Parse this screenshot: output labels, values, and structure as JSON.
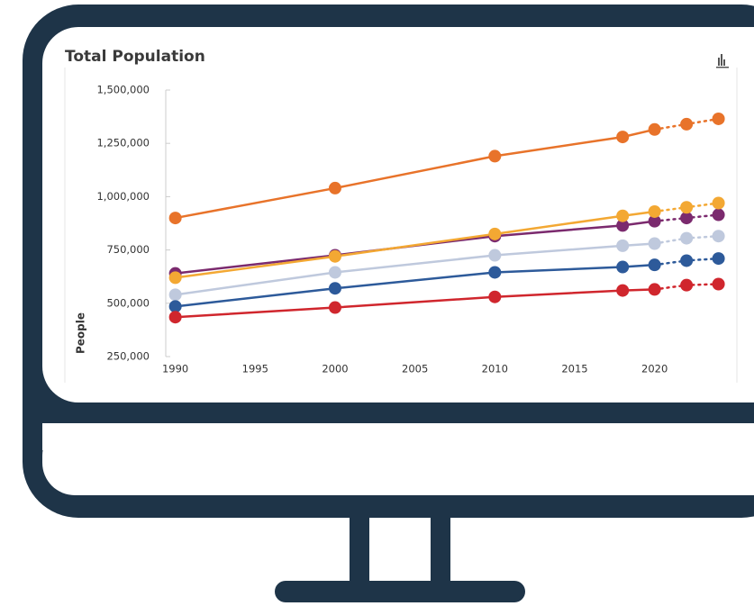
{
  "chart_data": {
    "type": "line",
    "title": "Total Population",
    "y_label": "People",
    "x": [
      1990,
      2000,
      2010,
      2018,
      2020,
      2022,
      2024
    ],
    "xlim": [
      1989.4,
      2024.7
    ],
    "xticks": [
      1990,
      1995,
      2000,
      2005,
      2010,
      2015,
      2020
    ],
    "ylim": [
      250000,
      1500000
    ],
    "yticks": [
      {
        "value": 250000,
        "label": "250,000"
      },
      {
        "value": 500000,
        "label": "500,000"
      },
      {
        "value": 750000,
        "label": "750,000"
      },
      {
        "value": 1000000,
        "label": "1,000,000"
      },
      {
        "value": 1250000,
        "label": "1,250,000"
      },
      {
        "value": 1500000,
        "label": "1,500,000"
      }
    ],
    "projection_from": 2020,
    "series": [
      {
        "color": "#e8732a",
        "values": [
          900000,
          1040000,
          1190000,
          1280000,
          1315000,
          1340000,
          1365000
        ]
      },
      {
        "color": "#7b2a6e",
        "values": [
          640000,
          725000,
          815000,
          865000,
          885000,
          900000,
          915000
        ]
      },
      {
        "color": "#f3a833",
        "values": [
          620000,
          720000,
          825000,
          910000,
          930000,
          950000,
          970000
        ]
      },
      {
        "color": "#bfc9dd",
        "values": [
          540000,
          645000,
          725000,
          770000,
          780000,
          805000,
          815000
        ]
      },
      {
        "color": "#2d5a9a",
        "values": [
          485000,
          570000,
          645000,
          670000,
          680000,
          700000,
          710000
        ]
      },
      {
        "color": "#d0262d",
        "values": [
          435000,
          480000,
          530000,
          560000,
          565000,
          585000,
          590000
        ]
      }
    ]
  }
}
